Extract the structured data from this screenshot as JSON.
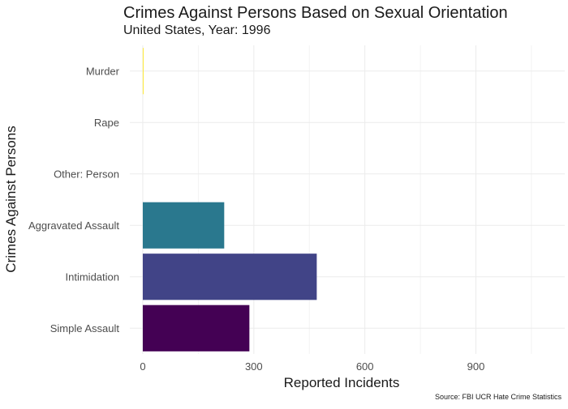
{
  "chart_data": {
    "type": "bar",
    "orientation": "horizontal",
    "title": "Crimes Against Persons Based on Sexual Orientation",
    "subtitle": "United States, Year: 1996",
    "xlabel": "Reported Incidents",
    "ylabel": "Crimes Against Persons",
    "caption": "Source: FBI UCR Hate Crime Statistics",
    "categories": [
      "Murder",
      "Rape",
      "Other: Person",
      "Aggravated Assault",
      "Intimidation",
      "Simple Assault"
    ],
    "values": [
      2,
      0,
      0,
      220,
      470,
      288
    ],
    "colors": [
      "#FDE725",
      "#7AD151",
      "#22A884",
      "#2A788E",
      "#414487",
      "#440154"
    ],
    "xlim": [
      -35,
      1140
    ],
    "xticks": [
      0,
      300,
      600,
      900
    ],
    "xtick_labels": [
      "0",
      "300",
      "600",
      "900"
    ],
    "grid": true,
    "legend": "none"
  }
}
